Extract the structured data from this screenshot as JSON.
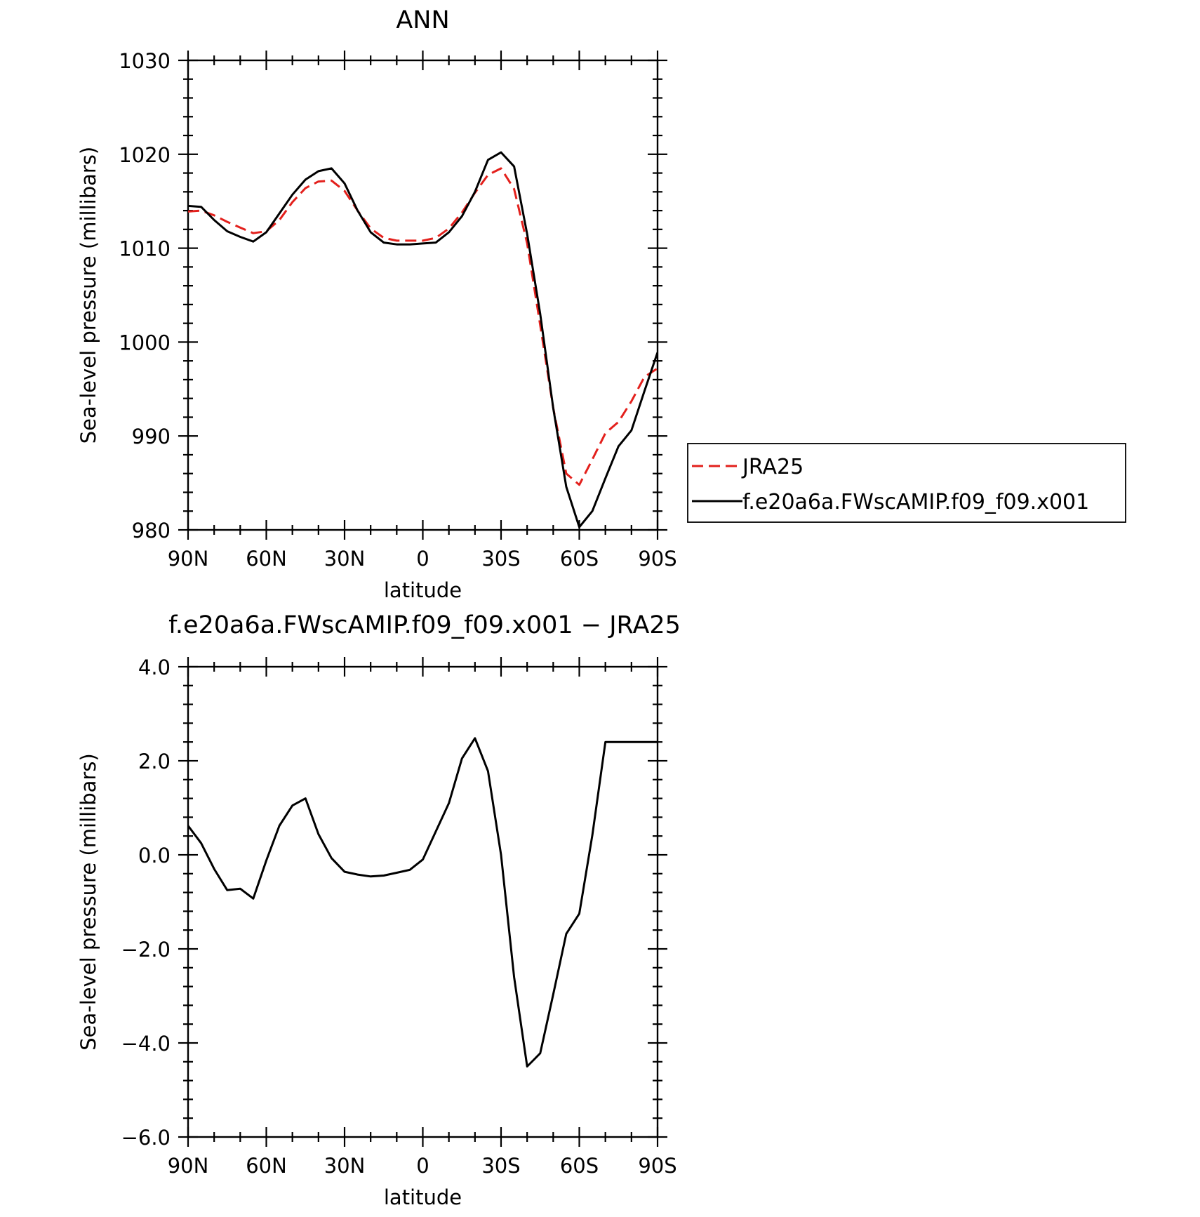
{
  "chart_data": [
    {
      "type": "line",
      "title": "ANN",
      "xlabel": "latitude",
      "ylabel": "Sea-level pressure (millibars)",
      "xlim": [
        90,
        -90
      ],
      "ylim": [
        980,
        1030
      ],
      "xticks": [
        {
          "value": 90,
          "label": "90N"
        },
        {
          "value": 60,
          "label": "60N"
        },
        {
          "value": 30,
          "label": "30N"
        },
        {
          "value": 0,
          "label": "0"
        },
        {
          "value": -30,
          "label": "30S"
        },
        {
          "value": -60,
          "label": "60S"
        },
        {
          "value": -90,
          "label": "90S"
        }
      ],
      "yticks": [
        {
          "value": 980,
          "label": "980"
        },
        {
          "value": 990,
          "label": "990"
        },
        {
          "value": 1000,
          "label": "1000"
        },
        {
          "value": 1010,
          "label": "1010"
        },
        {
          "value": 1020,
          "label": "1020"
        },
        {
          "value": 1030,
          "label": "1030"
        }
      ],
      "grid": false,
      "legend_position": "right",
      "series": [
        {
          "name": "JRA25",
          "color": "#e3201c",
          "dash": "dashed",
          "x": [
            90,
            85,
            80,
            75,
            70,
            65,
            60,
            55,
            50,
            45,
            40,
            35,
            30,
            25,
            20,
            15,
            10,
            5,
            0,
            -5,
            -10,
            -15,
            -20,
            -25,
            -30,
            -35,
            -40,
            -45,
            -50,
            -55,
            -60,
            -65,
            -70,
            -75,
            -80,
            -85,
            -90
          ],
          "y": [
            1013.9,
            1014.0,
            1013.5,
            1012.8,
            1012.2,
            1011.6,
            1011.8,
            1013.0,
            1014.9,
            1016.4,
            1017.1,
            1017.2,
            1016.1,
            1014.0,
            1012.1,
            1011.1,
            1010.8,
            1010.8,
            1010.8,
            1011.1,
            1012.1,
            1013.8,
            1015.9,
            1017.8,
            1018.5,
            1016.3,
            1010.5,
            1001.8,
            993.0,
            986.0,
            984.8,
            987.5,
            990.3,
            991.5,
            993.7,
            996.3,
            997.2
          ]
        },
        {
          "name": "f.e20a6a.FWscAMIP.f09_f09.x001",
          "color": "#000000",
          "dash": "solid",
          "x": [
            90,
            85,
            80,
            75,
            70,
            65,
            60,
            55,
            50,
            45,
            40,
            35,
            30,
            25,
            20,
            15,
            10,
            5,
            0,
            -5,
            -10,
            -15,
            -20,
            -25,
            -30,
            -35,
            -40,
            -45,
            -50,
            -55,
            -60,
            -65,
            -70,
            -75,
            -80,
            -85,
            -90
          ],
          "y": [
            1014.5,
            1014.4,
            1013.0,
            1011.8,
            1011.2,
            1010.7,
            1011.7,
            1013.7,
            1015.7,
            1017.3,
            1018.2,
            1018.5,
            1016.9,
            1014.0,
            1011.7,
            1010.6,
            1010.4,
            1010.4,
            1010.5,
            1010.6,
            1011.7,
            1013.4,
            1016.0,
            1019.4,
            1020.2,
            1018.7,
            1011.5,
            1003.0,
            993.0,
            984.6,
            980.3,
            982.0,
            985.5,
            988.9,
            990.6,
            994.8,
            998.9
          ]
        }
      ]
    },
    {
      "type": "line",
      "title": "f.e20a6a.FWscAMIP.f09_f09.x001 − JRA25",
      "xlabel": "latitude",
      "ylabel": "Sea-level pressure (millibars)",
      "xlim": [
        90,
        -90
      ],
      "ylim": [
        -6,
        4
      ],
      "xticks": [
        {
          "value": 90,
          "label": "90N"
        },
        {
          "value": 60,
          "label": "60N"
        },
        {
          "value": 30,
          "label": "30N"
        },
        {
          "value": 0,
          "label": "0"
        },
        {
          "value": -30,
          "label": "30S"
        },
        {
          "value": -60,
          "label": "60S"
        },
        {
          "value": -90,
          "label": "90S"
        }
      ],
      "yticks": [
        {
          "value": -6,
          "label": "−6.0"
        },
        {
          "value": -4,
          "label": "−4.0"
        },
        {
          "value": -2,
          "label": "−2.0"
        },
        {
          "value": 0,
          "label": "0.0"
        },
        {
          "value": 2,
          "label": "2.0"
        },
        {
          "value": 4,
          "label": "4.0"
        }
      ],
      "grid": false,
      "series": [
        {
          "color": "#000000",
          "dash": "solid",
          "x": [
            90,
            85,
            80,
            75,
            70,
            65,
            60,
            55,
            50,
            45,
            40,
            35,
            30,
            25,
            20,
            15,
            10,
            5,
            0,
            -5,
            -10,
            -15,
            -20,
            -25,
            -30,
            -35,
            -40,
            -45,
            -50,
            -55,
            -60,
            -65,
            -70,
            -75,
            -80,
            -85,
            -90
          ],
          "y": [
            0.62,
            0.25,
            -0.3,
            -0.75,
            -0.72,
            -0.93,
            -0.12,
            0.62,
            1.05,
            1.2,
            0.44,
            -0.07,
            -0.36,
            -0.42,
            -0.46,
            -0.44,
            -0.38,
            -0.32,
            -0.1,
            0.5,
            1.1,
            2.05,
            2.48,
            1.78,
            0.0,
            -2.6,
            -4.5,
            -4.22,
            -2.97,
            -1.68,
            -1.25,
            0.42,
            2.4,
            2.4,
            2.4,
            2.4,
            2.4
          ]
        }
      ]
    }
  ]
}
